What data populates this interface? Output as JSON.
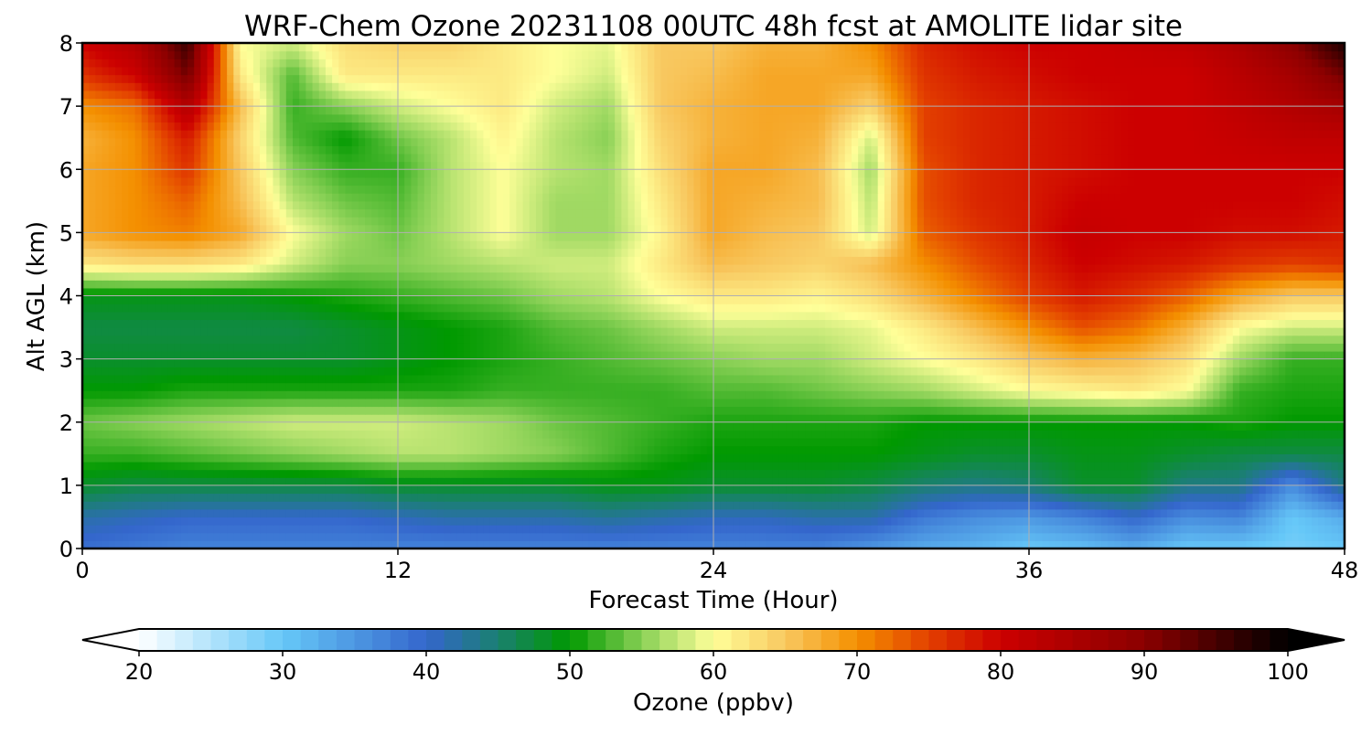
{
  "chart_data": {
    "type": "heatmap",
    "title": "WRF-Chem Ozone  20231108 00UTC 48h fcst at AMOLITE lidar site",
    "xlabel": "Forecast Time (Hour)",
    "ylabel": "Alt AGL (km)",
    "xlim": [
      0,
      48
    ],
    "ylim": [
      0,
      8
    ],
    "x_ticks": [
      0,
      12,
      24,
      36,
      48
    ],
    "y_ticks": [
      0,
      1,
      2,
      3,
      4,
      5,
      6,
      7,
      8
    ],
    "grid": true,
    "colorbar": {
      "label": "Ozone  (ppbv)",
      "range": [
        20,
        100
      ],
      "ticks": [
        20,
        30,
        40,
        50,
        60,
        70,
        80,
        90,
        100
      ],
      "extend": "both",
      "stops": [
        {
          "v": 20,
          "c": "#ffffff"
        },
        {
          "v": 30,
          "c": "#66c8f8"
        },
        {
          "v": 40,
          "c": "#3466cc"
        },
        {
          "v": 45,
          "c": "#1a8070"
        },
        {
          "v": 50,
          "c": "#009900"
        },
        {
          "v": 55,
          "c": "#88d055"
        },
        {
          "v": 60,
          "c": "#ffff99"
        },
        {
          "v": 65,
          "c": "#f8c860"
        },
        {
          "v": 70,
          "c": "#f49000"
        },
        {
          "v": 75,
          "c": "#e34000"
        },
        {
          "v": 80,
          "c": "#cc0000"
        },
        {
          "v": 90,
          "c": "#8b0000"
        },
        {
          "v": 100,
          "c": "#000000"
        }
      ]
    },
    "x_hours": [
      0,
      2,
      4,
      6,
      8,
      10,
      12,
      14,
      16,
      18,
      20,
      22,
      24,
      26,
      28,
      30,
      32,
      34,
      36,
      38,
      40,
      42,
      44,
      46,
      48
    ],
    "altitudes_km": [
      0,
      0.5,
      1,
      1.5,
      2,
      2.5,
      3,
      3.5,
      4,
      4.5,
      5,
      5.5,
      6,
      6.5,
      7,
      7.5,
      8
    ],
    "ozone_ppbv": [
      [
        39,
        38,
        37,
        37,
        37,
        37,
        37,
        37,
        37,
        37,
        37,
        37,
        37,
        37,
        37,
        35,
        33,
        32,
        30,
        31,
        33,
        30,
        30,
        29,
        30
      ],
      [
        42,
        41,
        40,
        40,
        40,
        40,
        41,
        42,
        42,
        42,
        43,
        42,
        41,
        41,
        42,
        42,
        38,
        36,
        35,
        37,
        40,
        36,
        37,
        30,
        33
      ],
      [
        48,
        47,
        47,
        47,
        47,
        47,
        48,
        48,
        48,
        48,
        49,
        49,
        48,
        48,
        48,
        47,
        45,
        44,
        45,
        48,
        48,
        44,
        44,
        36,
        44
      ],
      [
        52,
        52,
        53,
        54,
        55,
        56,
        57,
        57,
        56,
        55,
        53,
        51,
        50,
        50,
        50,
        50,
        49,
        48,
        48,
        49,
        49,
        48,
        47,
        47,
        47
      ],
      [
        54,
        55,
        56,
        57,
        58,
        58,
        58,
        57,
        56,
        54,
        53,
        52,
        51,
        51,
        51,
        51,
        50,
        50,
        50,
        50,
        50,
        50,
        51,
        50,
        50
      ],
      [
        50,
        50,
        51,
        51,
        51,
        51,
        51,
        51,
        52,
        52,
        52,
        52,
        53,
        53,
        54,
        55,
        56,
        58,
        60,
        61,
        62,
        60,
        52,
        51,
        51
      ],
      [
        48,
        48,
        48,
        48,
        48,
        48,
        49,
        50,
        51,
        52,
        53,
        54,
        55,
        56,
        56,
        58,
        60,
        62,
        65,
        67,
        66,
        63,
        56,
        52,
        52
      ],
      [
        47,
        47,
        47,
        47,
        47,
        48,
        49,
        50,
        51,
        53,
        54,
        56,
        58,
        58,
        58,
        59,
        62,
        66,
        70,
        74,
        72,
        67,
        60,
        58,
        58
      ],
      [
        49,
        49,
        49,
        49,
        50,
        51,
        52,
        53,
        54,
        56,
        57,
        60,
        62,
        62,
        61,
        63,
        67,
        71,
        75,
        78,
        76,
        73,
        68,
        65,
        65
      ],
      [
        62,
        63,
        63,
        62,
        58,
        55,
        55,
        56,
        57,
        58,
        58,
        62,
        66,
        65,
        64,
        66,
        70,
        74,
        77,
        80,
        79,
        78,
        76,
        75,
        76
      ],
      [
        68,
        70,
        71,
        68,
        60,
        56,
        54,
        57,
        60,
        56,
        56,
        61,
        68,
        66,
        65,
        58,
        73,
        76,
        78,
        81,
        80,
        80,
        79,
        79,
        78
      ],
      [
        68,
        70,
        73,
        66,
        57,
        54,
        53,
        57,
        60,
        56,
        56,
        62,
        68,
        67,
        66,
        57,
        74,
        77,
        78,
        80,
        80,
        80,
        80,
        80,
        79
      ],
      [
        68,
        70,
        76,
        65,
        55,
        52,
        52,
        57,
        60,
        57,
        56,
        63,
        68,
        68,
        66,
        56,
        74,
        77,
        78,
        79,
        80,
        80,
        80,
        80,
        80
      ],
      [
        67,
        70,
        78,
        64,
        53,
        50,
        54,
        57,
        61,
        57,
        55,
        64,
        67,
        68,
        67,
        58,
        75,
        77,
        78,
        79,
        80,
        80,
        81,
        82,
        82
      ],
      [
        70,
        72,
        84,
        66,
        52,
        55,
        58,
        60,
        62,
        58,
        56,
        65,
        67,
        68,
        68,
        64,
        75,
        77,
        78,
        79,
        80,
        80,
        82,
        84,
        86
      ],
      [
        76,
        80,
        92,
        62,
        53,
        62,
        62,
        62,
        62,
        60,
        58,
        65,
        66,
        68,
        68,
        68,
        76,
        78,
        79,
        80,
        80,
        80,
        83,
        86,
        92
      ],
      [
        80,
        84,
        96,
        60,
        58,
        63,
        64,
        64,
        62,
        60,
        59,
        65,
        65,
        67,
        67,
        70,
        77,
        79,
        80,
        80,
        81,
        82,
        85,
        90,
        98
      ]
    ]
  }
}
